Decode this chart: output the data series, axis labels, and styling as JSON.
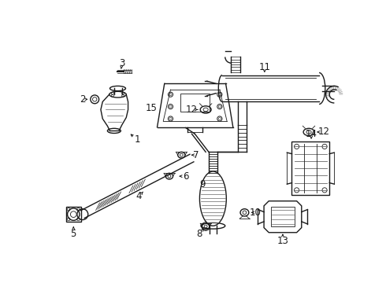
{
  "background_color": "#ffffff",
  "fig_width": 4.9,
  "fig_height": 3.6,
  "dpi": 100,
  "line_color": "#1a1a1a",
  "gray_color": "#666666",
  "lw_main": 1.0,
  "lw_thin": 0.6,
  "label_fontsize": 8.5
}
